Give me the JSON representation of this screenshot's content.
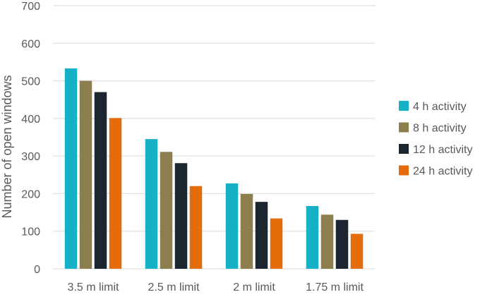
{
  "chart_data": {
    "type": "bar",
    "title": "",
    "xlabel": "",
    "ylabel": "Number of open windows",
    "ylim": [
      0,
      700
    ],
    "yticks": [
      0,
      100,
      200,
      300,
      400,
      500,
      600,
      700
    ],
    "grid": true,
    "legend_position": "right",
    "categories": [
      "3.5 m limit",
      "2.5 m limit",
      "2 m limit",
      "1.75 m limit"
    ],
    "series": [
      {
        "name": "4 h activity",
        "color": "#17B1C7",
        "values": [
          533,
          345,
          227,
          167
        ]
      },
      {
        "name": "8 h activity",
        "color": "#8C7F4D",
        "values": [
          500,
          311,
          199,
          144
        ]
      },
      {
        "name": "12 h activity",
        "color": "#1B2631",
        "values": [
          470,
          281,
          178,
          130
        ]
      },
      {
        "name": "24 h activity",
        "color": "#E46C0A",
        "values": [
          401,
          220,
          134,
          93
        ]
      }
    ]
  }
}
